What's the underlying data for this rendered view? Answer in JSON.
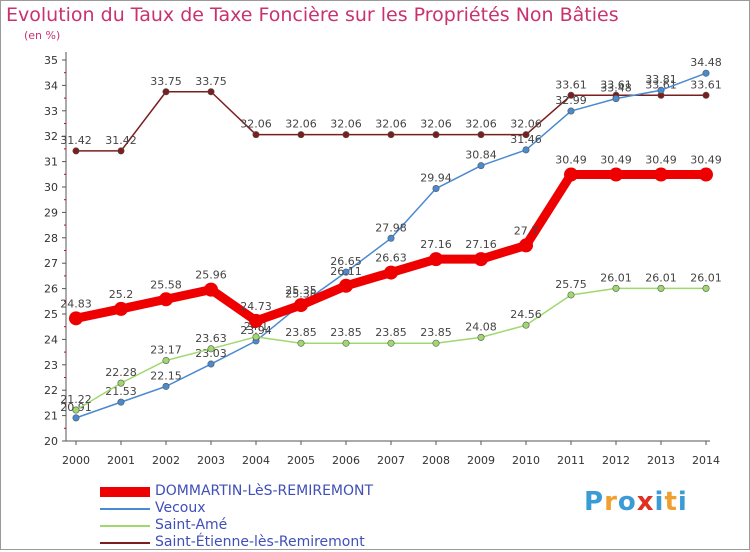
{
  "header": {
    "title": "Evolution du Taux de Taxe Foncière sur les Propriétés Non Bâties",
    "unit": "(en %)"
  },
  "logo": {
    "text": "Proxiti",
    "colors": [
      "#3b9bd6",
      "#f0a030",
      "#3b9bd6",
      "#e03020",
      "#3b9bd6",
      "#f0a030",
      "#3b9bd6"
    ]
  },
  "chart_data": {
    "type": "line",
    "title": "Evolution du Taux de Taxe Foncière sur les Propriétés Non Bâties",
    "ylabel": "(en %)",
    "xlabel": "",
    "ylim": [
      20,
      35
    ],
    "grid": false,
    "x": [
      "2000",
      "2001",
      "2002",
      "2003",
      "2004",
      "2005",
      "2006",
      "2007",
      "2008",
      "2009",
      "2010",
      "2011",
      "2012",
      "2013",
      "2014"
    ],
    "yticks": [
      "20",
      "21",
      "22",
      "23",
      "24",
      "25",
      "26",
      "27",
      "28",
      "29",
      "30",
      "31",
      "32",
      "33",
      "34",
      "35"
    ],
    "series": [
      {
        "name": "Saint-Étienne-lès-Remiremont",
        "color": "#7a1e1e",
        "values": [
          31.42,
          31.42,
          33.75,
          33.75,
          32.06,
          32.06,
          32.06,
          32.06,
          32.06,
          32.06,
          32.06,
          33.61,
          33.61,
          33.61,
          33.61
        ],
        "labels": [
          "31.42",
          "31.42",
          "33.75",
          "33.75",
          "32.06",
          "32.06",
          "32.06",
          "32.06",
          "32.06",
          "32.06",
          "32.06",
          "33.61",
          "33.61",
          "33.61",
          "33.61"
        ]
      },
      {
        "name": "Vecoux",
        "color": "#4a8ad0",
        "values": [
          20.91,
          21.53,
          22.15,
          23.03,
          23.94,
          25.38,
          26.65,
          27.98,
          29.94,
          30.84,
          31.46,
          32.99,
          33.48,
          33.81,
          34.48
        ],
        "labels": [
          "20.91",
          "21.53",
          "22.15",
          "23.03",
          "23.94",
          "25.38",
          "26.65",
          "27.98",
          "29.94",
          "30.84",
          "31.46",
          "32.99",
          "33.48",
          "33.81",
          "34.48"
        ]
      },
      {
        "name": "Saint-Amé",
        "color": "#a0d870",
        "values": [
          21.22,
          22.28,
          23.17,
          23.63,
          24.1,
          23.85,
          23.85,
          23.85,
          23.85,
          24.08,
          24.56,
          25.75,
          26.01,
          26.01,
          26.01
        ],
        "labels": [
          "21.22",
          "22.28",
          "23.17",
          "23.63",
          "24.1",
          "23.85",
          "23.85",
          "23.85",
          "23.85",
          "24.08",
          "24.56",
          "25.75",
          "26.01",
          "26.01",
          "26.01"
        ]
      },
      {
        "name": "DOMMARTIN-LèS-REMIREMONT",
        "color": "#ee0000",
        "values": [
          24.83,
          25.2,
          25.58,
          25.96,
          24.73,
          25.35,
          26.11,
          26.63,
          27.16,
          27.16,
          27.7,
          30.49,
          30.49,
          30.49,
          30.49
        ],
        "labels": [
          "24.83",
          "25.2",
          "25.58",
          "25.96",
          "24.73",
          "25.35",
          "26.11",
          "26.63",
          "27.16",
          "27.16",
          "27.7",
          "30.49",
          "30.49",
          "30.49",
          "30.49"
        ]
      }
    ],
    "legend_order": [
      "DOMMARTIN-LèS-REMIREMONT",
      "Vecoux",
      "Saint-Amé",
      "Saint-Étienne-lès-Remiremont"
    ]
  }
}
